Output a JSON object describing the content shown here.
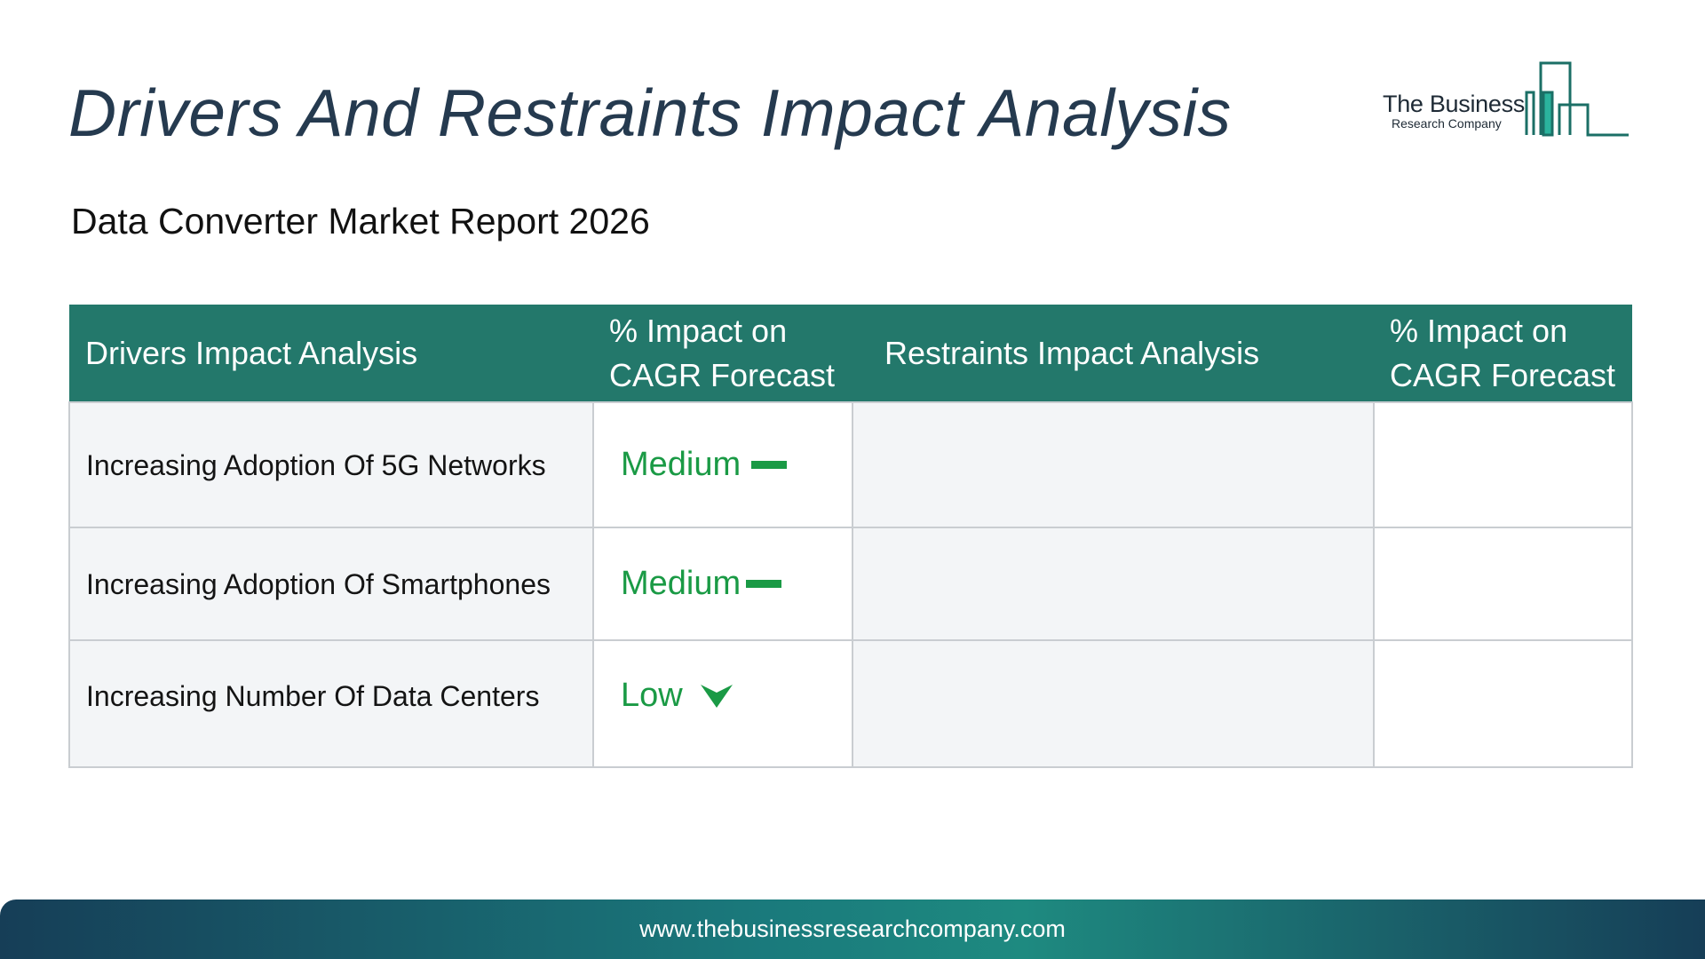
{
  "title": "Drivers And Restraints Impact Analysis",
  "subtitle": "Data Converter Market Report 2026",
  "logo": {
    "line1": "The Business",
    "line2": "Research Company",
    "icon": "bar-chart-building-logo",
    "color": "#1b6f66"
  },
  "table": {
    "headers": [
      "Drivers Impact Analysis",
      "% Impact on CAGR Forecast",
      "Restraints Impact Analysis",
      "% Impact on CAGR Forecast"
    ],
    "rows": [
      {
        "driver": "Increasing Adoption Of 5G Networks",
        "impact": "Medium",
        "impact_icon": "dash-icon",
        "restraint": "",
        "restraint_impact": ""
      },
      {
        "driver": "Increasing Adoption Of Smartphones",
        "impact": "Medium",
        "impact_icon": "dash-icon",
        "restraint": "",
        "restraint_impact": ""
      },
      {
        "driver": "Increasing Number Of Data Centers",
        "impact": "Low",
        "impact_icon": "chevron-down-icon",
        "restraint": "",
        "restraint_impact": ""
      }
    ],
    "colors": {
      "header_bg": "#23786b",
      "impact_text": "#1a9a45"
    }
  },
  "footer": {
    "url": "www.thebusinessresearchcompany.com"
  }
}
